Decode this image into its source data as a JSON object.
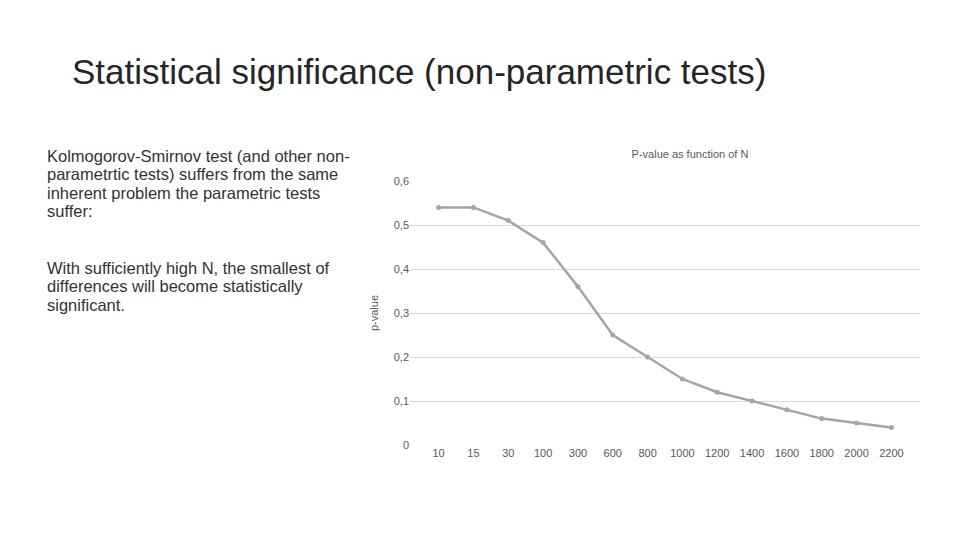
{
  "slide": {
    "title": "Statistical significance (non-parametric tests)",
    "text": [
      "Kolmogorov-Smirnov test (and other non-parametrtic tests) suffers from the same inherent problem the parametric tests suffer:",
      "With sufficiently high N, the smallest of differences will become statistically significant."
    ]
  },
  "chart_data": {
    "type": "line",
    "title": "P-value as function of N",
    "y_label": "p-value",
    "categories": [
      "10",
      "15",
      "30",
      "100",
      "300",
      "600",
      "800",
      "1000",
      "1200",
      "1400",
      "1600",
      "1800",
      "2000",
      "2200"
    ],
    "values": [
      0.54,
      0.54,
      0.51,
      0.46,
      0.36,
      0.25,
      0.2,
      0.15,
      0.12,
      0.1,
      0.08,
      0.06,
      0.05,
      0.04
    ],
    "color": "#a5a5a5",
    "marker": "circle",
    "line_style": "solid",
    "ylim": [
      0,
      0.6
    ],
    "yticks": [
      0,
      {
        "value": 0.1,
        "label": "0,1"
      },
      {
        "value": 0.2,
        "label": "0,2"
      },
      {
        "value": 0.3,
        "label": "0,3"
      },
      {
        "value": 0.4,
        "label": "0,4"
      },
      {
        "value": 0.5,
        "label": "0,5"
      },
      {
        "value": 0.6,
        "label": "0,6"
      }
    ],
    "grid": true
  }
}
